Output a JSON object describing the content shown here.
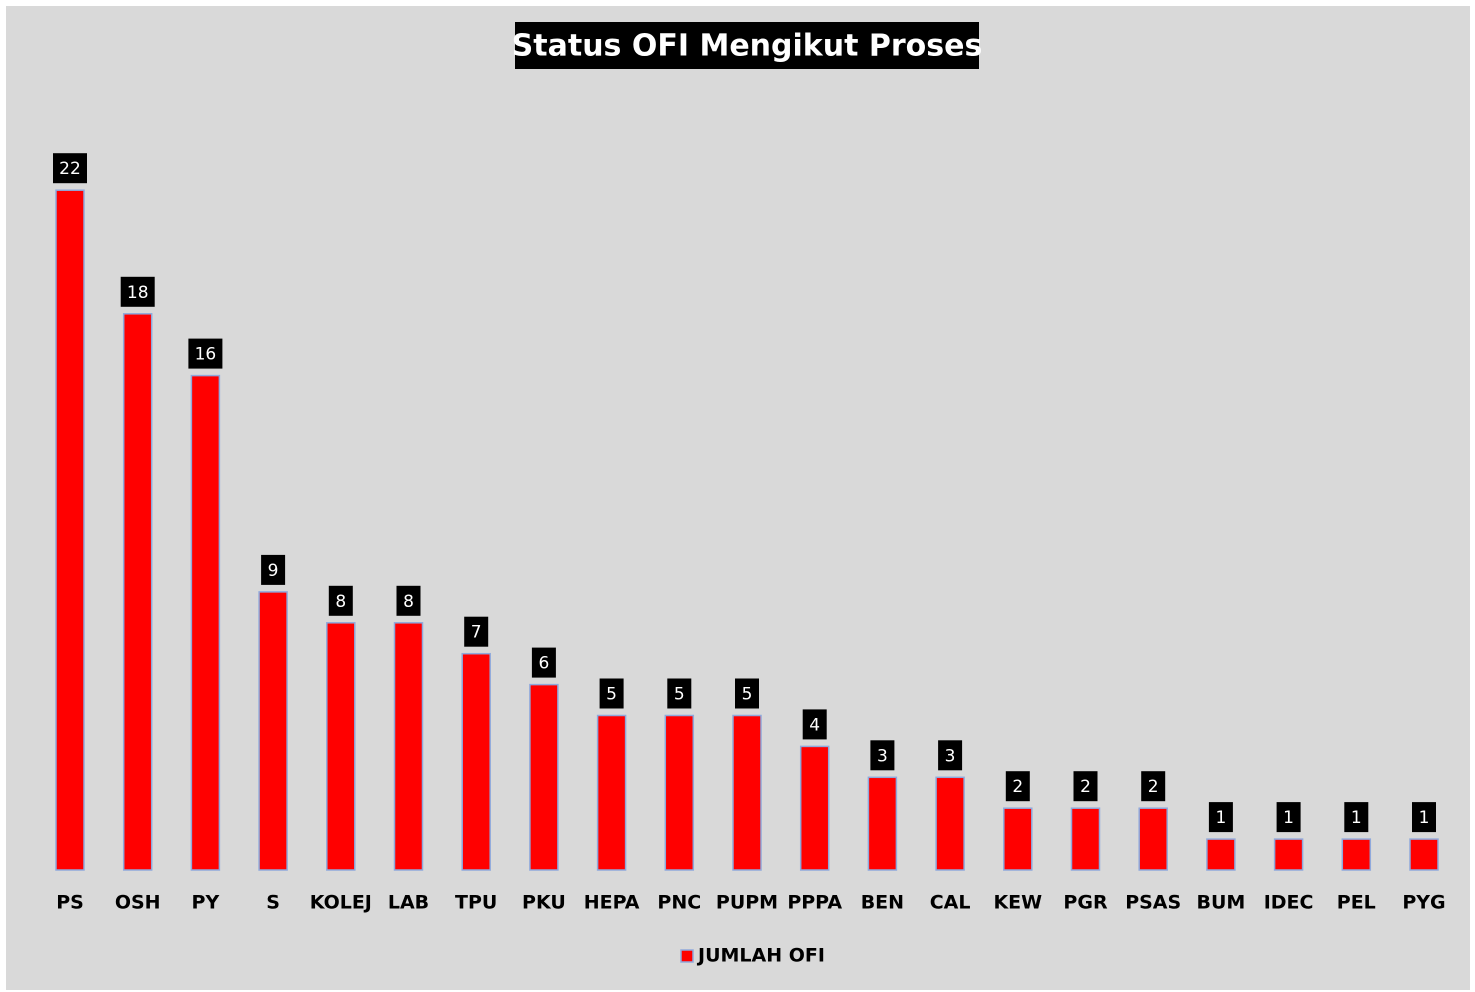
{
  "chart_data": {
    "type": "bar",
    "title": "Status OFI Mengikut Proses",
    "categories": [
      "PS",
      "OSH",
      "PY",
      "S",
      "KOLEJ",
      "LAB",
      "TPU",
      "PKU",
      "HEPA",
      "PNC",
      "PUPM",
      "PPPA",
      "BEN",
      "CAL",
      "KEW",
      "PGR",
      "PSAS",
      "BUM",
      "IDEC",
      "PEL",
      "PYG"
    ],
    "series": [
      {
        "name": "JUMLAH OFI",
        "color": "#ff0000",
        "values": [
          22,
          18,
          16,
          9,
          8,
          8,
          7,
          6,
          5,
          5,
          5,
          4,
          3,
          3,
          2,
          2,
          2,
          1,
          1,
          1,
          1
        ]
      }
    ],
    "legend": "bottom"
  }
}
